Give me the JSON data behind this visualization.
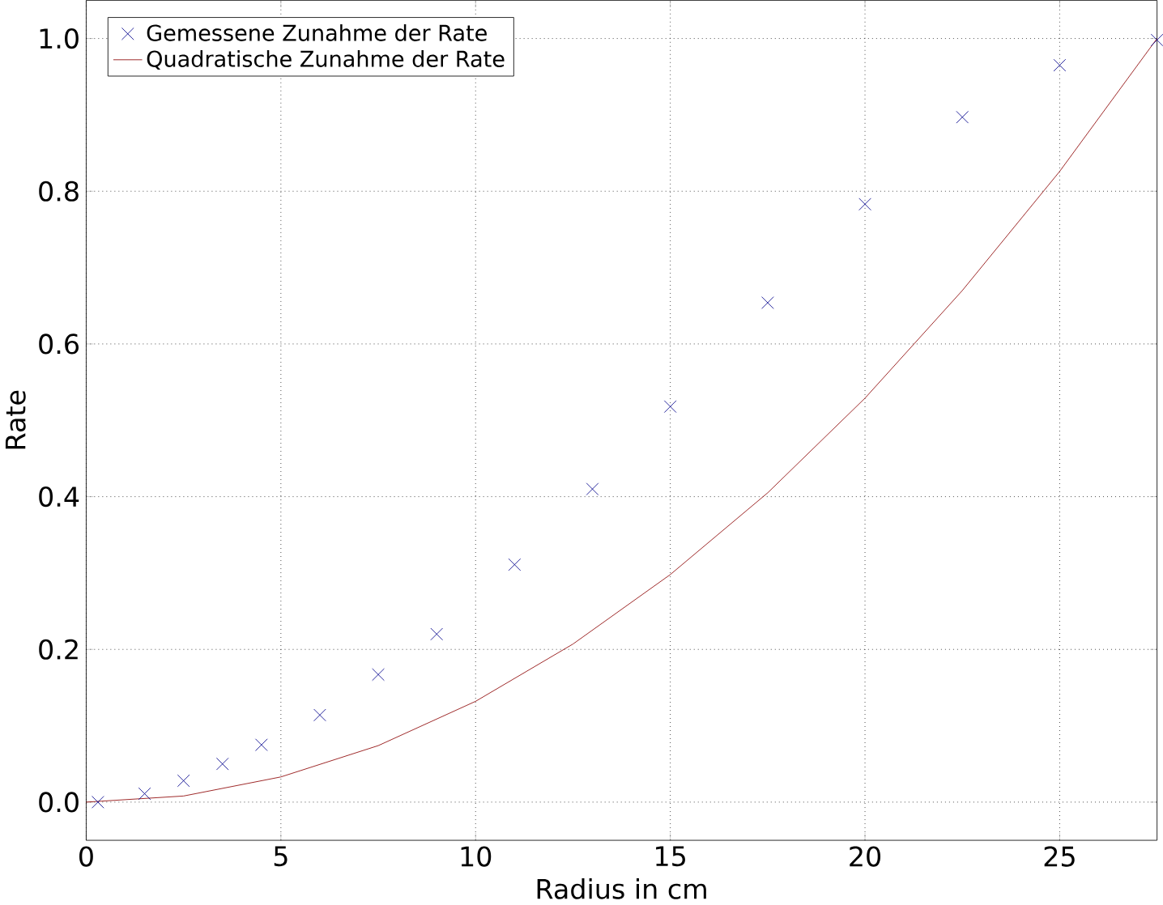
{
  "chart_data": {
    "type": "scatter",
    "xlabel": "Radius in cm",
    "ylabel": "Rate",
    "xlim": [
      0,
      27.5
    ],
    "ylim": [
      -0.05,
      1.05
    ],
    "xticks": [
      0,
      5,
      10,
      15,
      20,
      25
    ],
    "yticks": [
      {
        "value": 0,
        "label": "0.0"
      },
      {
        "value": 0.2,
        "label": "0.2"
      },
      {
        "value": 0.4,
        "label": "0.4"
      },
      {
        "value": 0.6,
        "label": "0.6"
      },
      {
        "value": 0.8,
        "label": "0.8"
      },
      {
        "value": 1,
        "label": "1.0"
      }
    ],
    "grid": true,
    "legend": "top left",
    "series": [
      {
        "name": "Gemessene Zunahme der Rate",
        "marker": "cross",
        "color": "#00008b",
        "x": [
          0.3,
          1.5,
          2.5,
          3.5,
          4.5,
          6,
          7.5,
          9,
          11,
          13,
          15,
          17.5,
          20,
          22.5,
          25,
          27.5
        ],
        "values": [
          0.0,
          0.011,
          0.028,
          0.05,
          0.075,
          0.114,
          0.167,
          0.22,
          0.311,
          0.41,
          0.518,
          0.654,
          0.783,
          0.897,
          0.965,
          0.998
        ]
      },
      {
        "name": "Quadratische Zunahme der Rate",
        "type": "line",
        "marker": "none",
        "line_style": "solid",
        "color": "#8b0000",
        "x": [
          0,
          2.5,
          5,
          7.5,
          10,
          12.5,
          15,
          17.5,
          20,
          22.5,
          25,
          27.5
        ],
        "values": [
          0,
          0.008,
          0.033,
          0.074,
          0.132,
          0.207,
          0.298,
          0.405,
          0.529,
          0.67,
          0.826,
          1.0
        ]
      }
    ]
  }
}
